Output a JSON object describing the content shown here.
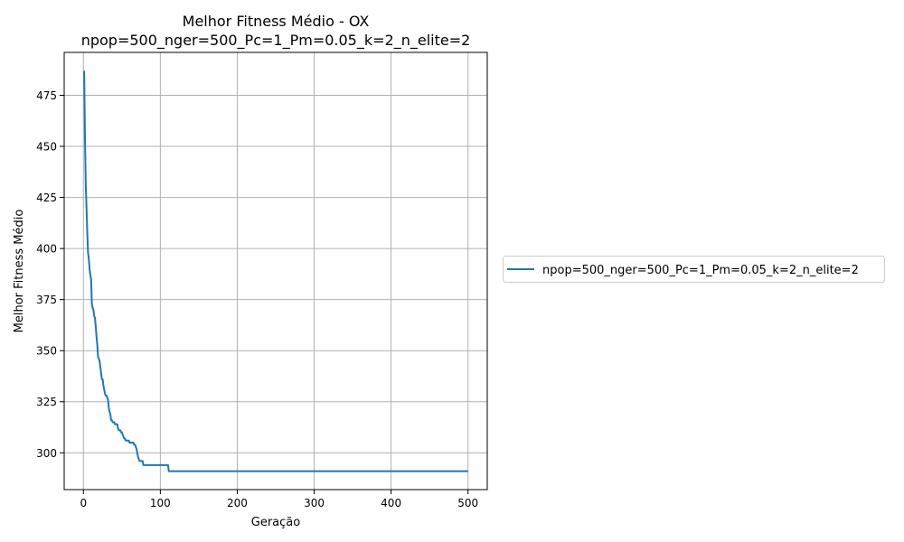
{
  "chart_data": {
    "type": "line",
    "title_line1": "Melhor Fitness Médio - OX",
    "title_line2": "npop=500_nger=500_Pc=1_Pm=0.05_k=2_n_elite=2",
    "xlabel": "Geração",
    "ylabel": "Melhor Fitness Médio",
    "xlim": [
      -25,
      525
    ],
    "ylim": [
      282,
      496
    ],
    "xticks": [
      0,
      100,
      200,
      300,
      400,
      500
    ],
    "yticks": [
      300,
      325,
      350,
      375,
      400,
      425,
      450,
      475
    ],
    "grid": true,
    "legend_position": "right, outside plot",
    "series": [
      {
        "name": "npop=500_nger=500_Pc=1_Pm=0.05_k=2_n_elite=2",
        "color": "#1f77b4",
        "x": [
          1,
          2,
          3,
          4,
          5,
          6,
          7,
          8,
          9,
          10,
          11,
          12,
          13,
          14,
          15,
          16,
          17,
          18,
          19,
          20,
          21,
          22,
          23,
          24,
          25,
          26,
          27,
          28,
          29,
          30,
          31,
          32,
          33,
          34,
          35,
          36,
          37,
          38,
          39,
          40,
          41,
          42,
          43,
          44,
          45,
          46,
          47,
          48,
          49,
          50,
          51,
          52,
          53,
          54,
          55,
          56,
          57,
          58,
          59,
          60,
          61,
          62,
          63,
          64,
          65,
          66,
          67,
          68,
          69,
          70,
          71,
          72,
          73,
          74,
          75,
          76,
          77,
          78,
          79,
          80,
          81,
          82,
          83,
          84,
          85,
          86,
          87,
          88,
          89,
          90,
          91,
          92,
          93,
          94,
          95,
          96,
          97,
          98,
          99,
          100,
          101,
          102,
          103,
          104,
          105,
          106,
          107,
          108,
          109,
          110,
          111,
          112,
          113,
          114,
          115,
          116,
          117,
          118,
          119,
          120,
          130,
          140,
          150,
          160,
          170,
          180,
          190,
          200,
          220,
          240,
          260,
          280,
          300,
          320,
          340,
          360,
          380,
          400,
          420,
          440,
          460,
          480,
          500
        ],
        "y": [
          487,
          455,
          432,
          420,
          408,
          398,
          395,
          390,
          387,
          385,
          373,
          371,
          370,
          367,
          366,
          362,
          357,
          353,
          347,
          346,
          345,
          342,
          339,
          336,
          336,
          333,
          331,
          329,
          328,
          328,
          327,
          326,
          322,
          320,
          319,
          316,
          316,
          315,
          315,
          315,
          314,
          314,
          314,
          314,
          312,
          311,
          311,
          311,
          310,
          310,
          309,
          308,
          307,
          307,
          306,
          306,
          306,
          306,
          306,
          305,
          305,
          305,
          305,
          305,
          305,
          304,
          304,
          303,
          302,
          300,
          298,
          297,
          296,
          296,
          296,
          296,
          296,
          294,
          294,
          294,
          294,
          294,
          294,
          294,
          294,
          294,
          294,
          294,
          294,
          294,
          294,
          294,
          294,
          294,
          294,
          294,
          294,
          294,
          294,
          294,
          294,
          294,
          294,
          294,
          294,
          294,
          294,
          294,
          294,
          294,
          291,
          291,
          291,
          291,
          291,
          291,
          291,
          291,
          291,
          291,
          291,
          291,
          291,
          291,
          291,
          291,
          291,
          291,
          291,
          291,
          291,
          291,
          291,
          291,
          291,
          291,
          291,
          291,
          291,
          291,
          291,
          291,
          291
        ]
      }
    ]
  }
}
